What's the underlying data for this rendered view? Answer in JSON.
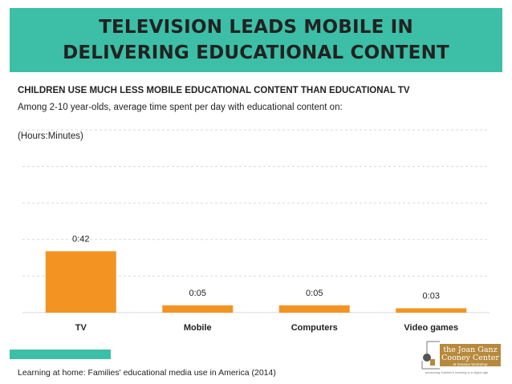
{
  "header": {
    "title": "TELEVISION LEADS MOBILE IN DELIVERING EDUCATIONAL CONTENT"
  },
  "subtitle": "CHILDREN USE MUCH LESS MOBILE EDUCATIONAL CONTENT THAN EDUCATIONAL TV",
  "description": "Among 2-10 year-olds, average time spent per day with educational content on:",
  "units_note": "(Hours:Minutes)",
  "chart_data": {
    "type": "bar",
    "categories": [
      "TV",
      "Mobile",
      "Computers",
      "Video games"
    ],
    "values": [
      42,
      5,
      5,
      3
    ],
    "data_labels": [
      "0:42",
      "0:05",
      "0:05",
      "0:03"
    ],
    "value_unit": "minutes",
    "ylim": [
      0,
      125
    ],
    "grid": true,
    "xlabel": "",
    "ylabel": "",
    "bar_color": "#f39422",
    "grid_color": "#d9d9d9"
  },
  "source": "Learning at home: Families' educational media use in America (2014)",
  "logo": {
    "line1": "the Joan Ganz",
    "line2": "Cooney Center",
    "line3": "at Sesame Workshop",
    "tagline": "advancing children's learning in a digital age"
  },
  "colors": {
    "accent": "#3cbfa6",
    "bar": "#f39422",
    "logo": "#b7893d"
  }
}
